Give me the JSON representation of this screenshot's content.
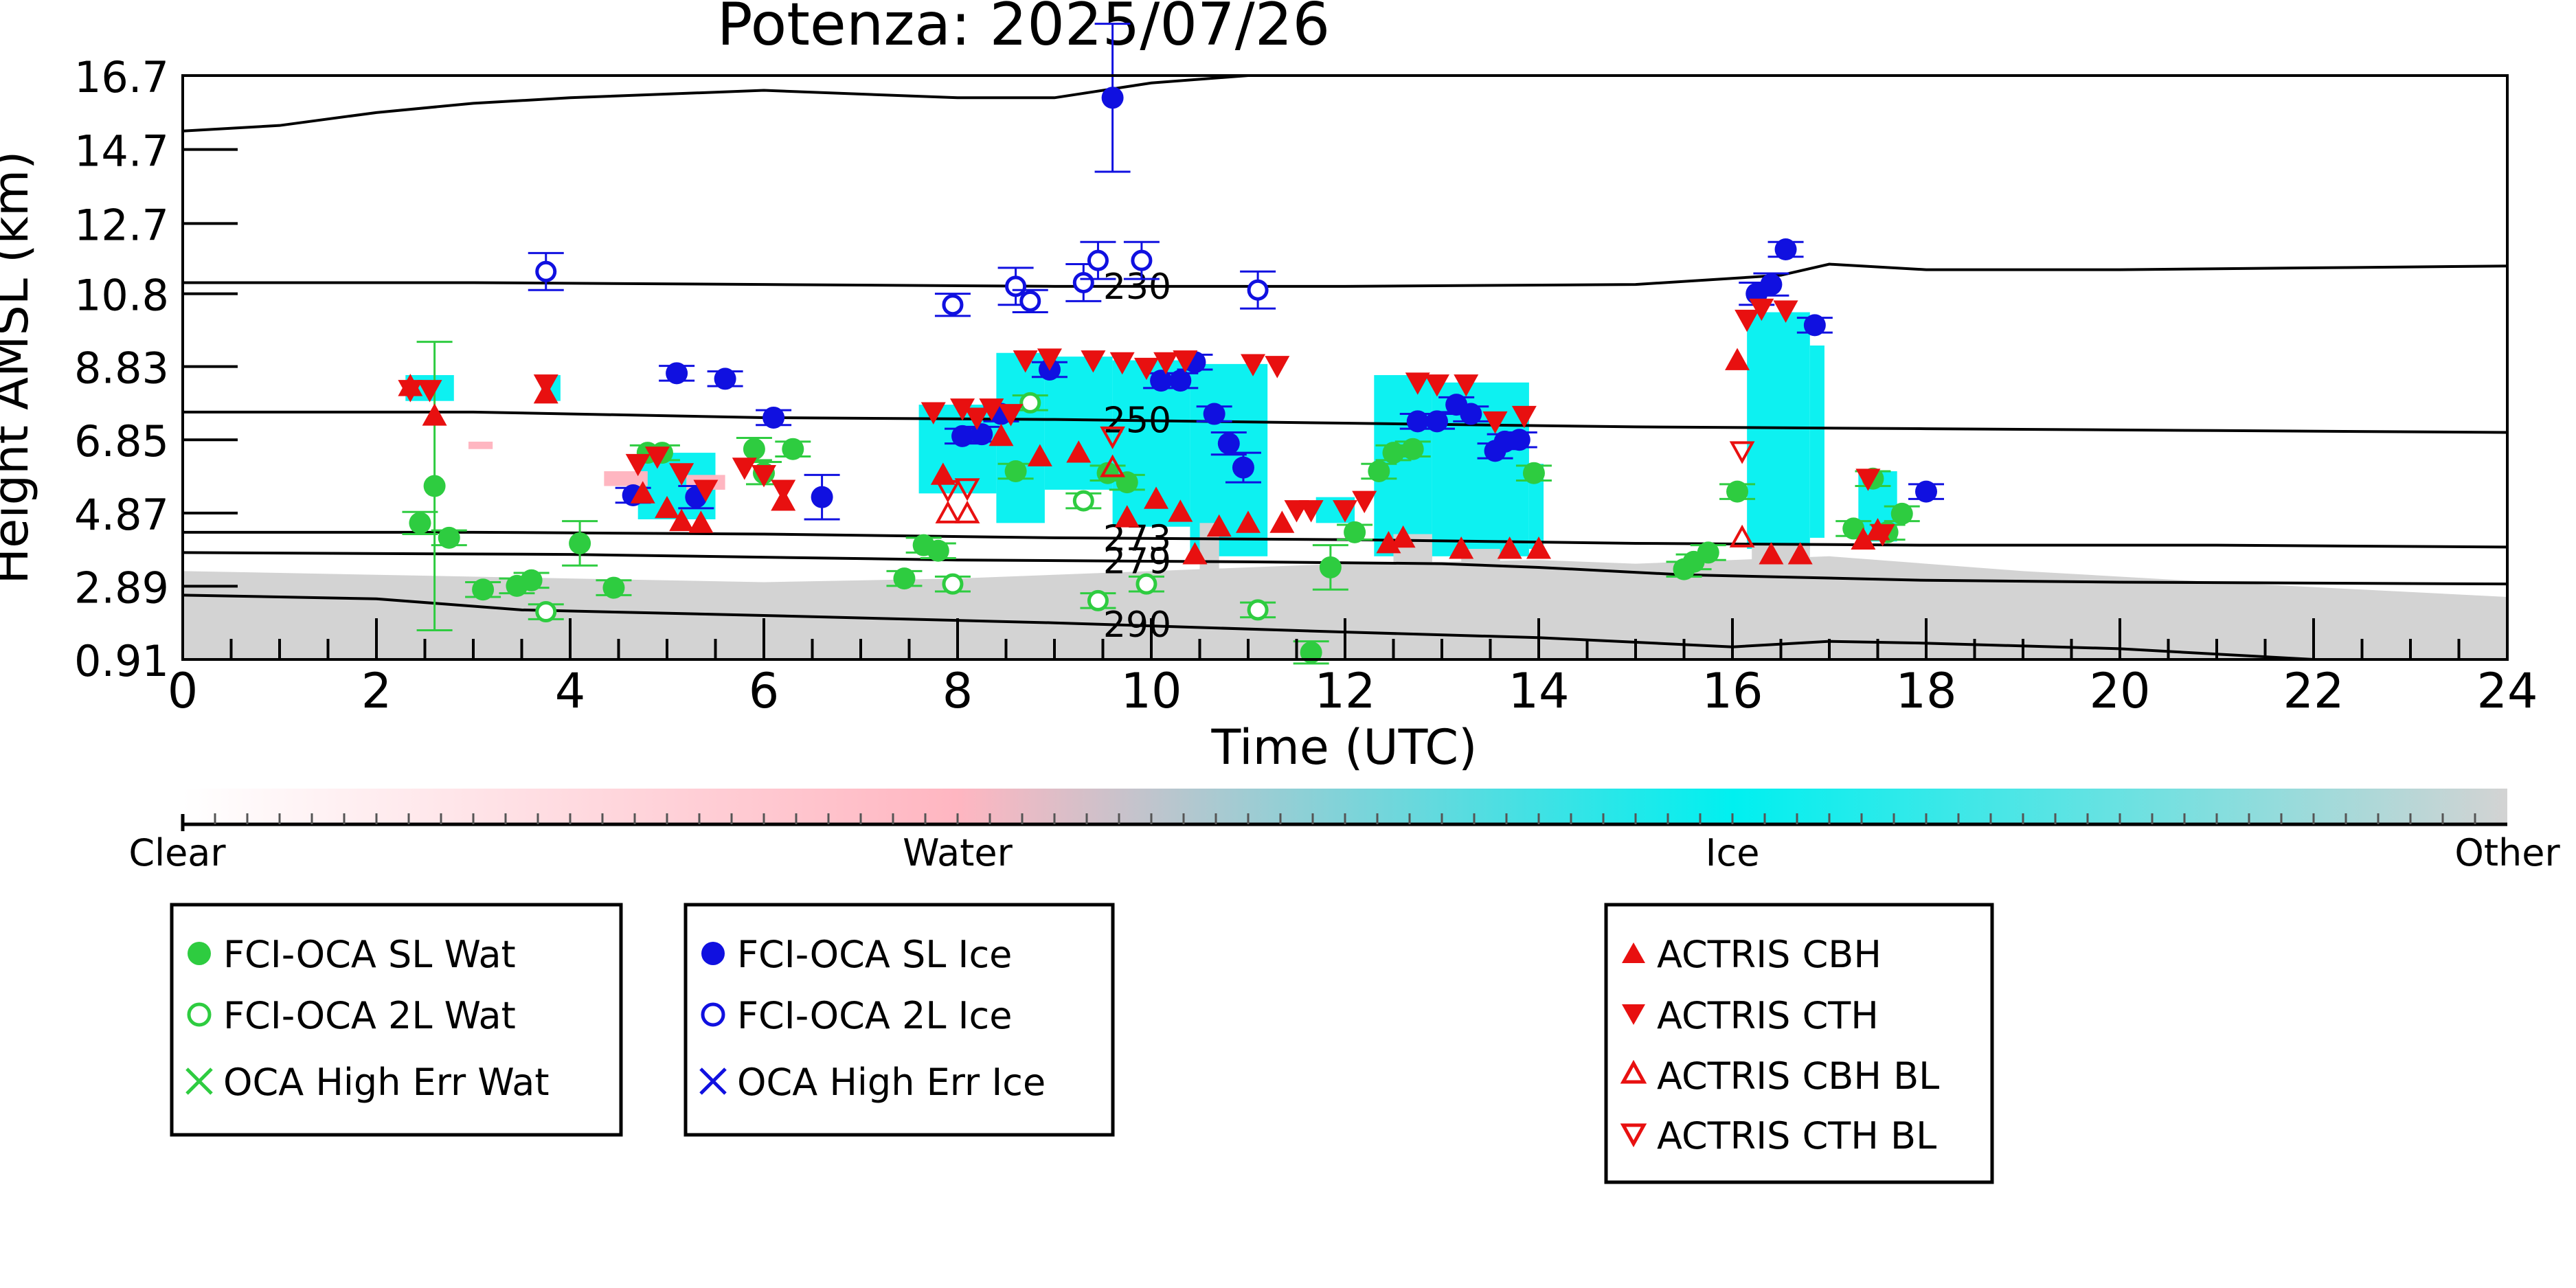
{
  "chart_data": {
    "type": "scatter",
    "title": "Potenza: 2025/07/26",
    "xlabel": "Time (UTC)",
    "ylabel": "Height AMSL (km)",
    "xlim": [
      0,
      24
    ],
    "ylim": [
      0.91,
      16.7
    ],
    "x_ticks": [
      "0",
      "2",
      "4",
      "6",
      "8",
      "10",
      "12",
      "14",
      "16",
      "18",
      "20",
      "22",
      "24"
    ],
    "y_ticks": [
      "0.91",
      "2.89",
      "4.87",
      "6.85",
      "8.83",
      "10.8",
      "12.7",
      "14.7",
      "16.7"
    ],
    "y_tick_values": [
      0.91,
      2.89,
      4.87,
      6.85,
      8.83,
      10.8,
      12.7,
      14.7,
      16.7
    ],
    "colorbar": {
      "labels": [
        "Clear",
        "Water",
        "Ice",
        "Other"
      ],
      "colors": [
        "#ffffff",
        "#ffb6c1",
        "#00f0f0",
        "#d3d3d3"
      ]
    },
    "colors": {
      "water": "#2ecc40",
      "ice": "#1010e0",
      "actris": "#e81010",
      "cloud_ice": "#00f0f0",
      "cloud_other": "#d3d3d3",
      "cloud_water": "#ffb6c1"
    },
    "contours": [
      {
        "label": "230",
        "label_x": 9.5,
        "points": [
          [
            0,
            11.1
          ],
          [
            3,
            11.1
          ],
          [
            6,
            11.05
          ],
          [
            9,
            11.0
          ],
          [
            12,
            11.0
          ],
          [
            15,
            11.05
          ],
          [
            16.5,
            11.3
          ],
          [
            17,
            11.6
          ],
          [
            18,
            11.45
          ],
          [
            20,
            11.45
          ],
          [
            22,
            11.5
          ],
          [
            24,
            11.55
          ]
        ]
      },
      {
        "label": "250",
        "label_x": 9.5,
        "points": [
          [
            0,
            7.6
          ],
          [
            3,
            7.6
          ],
          [
            6,
            7.45
          ],
          [
            9,
            7.4
          ],
          [
            12,
            7.3
          ],
          [
            15,
            7.2
          ],
          [
            18,
            7.15
          ],
          [
            21,
            7.1
          ],
          [
            24,
            7.05
          ]
        ]
      },
      {
        "label": "273",
        "label_x": 9.5,
        "points": [
          [
            0,
            4.35
          ],
          [
            3,
            4.35
          ],
          [
            6,
            4.3
          ],
          [
            9,
            4.2
          ],
          [
            12,
            4.15
          ],
          [
            15,
            4.05
          ],
          [
            18,
            4.0
          ],
          [
            21,
            4.0
          ],
          [
            24,
            3.95
          ]
        ]
      },
      {
        "label": "279",
        "label_x": 9.5,
        "points": [
          [
            0,
            3.8
          ],
          [
            4,
            3.75
          ],
          [
            8,
            3.6
          ],
          [
            11,
            3.55
          ],
          [
            13,
            3.5
          ],
          [
            14,
            3.4
          ],
          [
            15.5,
            3.2
          ],
          [
            18,
            3.05
          ],
          [
            20,
            3.0
          ],
          [
            24,
            2.95
          ]
        ]
      },
      {
        "label": "290",
        "label_x": 9.5,
        "points": [
          [
            0,
            2.65
          ],
          [
            2,
            2.55
          ],
          [
            3.5,
            2.25
          ],
          [
            6,
            2.1
          ],
          [
            9,
            1.9
          ],
          [
            12,
            1.65
          ],
          [
            14,
            1.5
          ],
          [
            16,
            1.25
          ],
          [
            17,
            1.4
          ],
          [
            18,
            1.35
          ],
          [
            20,
            1.2
          ],
          [
            22,
            0.91
          ]
        ]
      },
      {
        "label": "",
        "label_x": null,
        "points": [
          [
            0,
            15.2
          ],
          [
            1,
            15.35
          ],
          [
            2,
            15.7
          ],
          [
            3,
            15.95
          ],
          [
            4,
            16.1
          ],
          [
            6,
            16.3
          ],
          [
            8,
            16.1
          ],
          [
            9,
            16.1
          ],
          [
            10,
            16.5
          ],
          [
            11,
            16.7
          ]
        ]
      }
    ],
    "series": [
      {
        "name": "FCI-OCA SL Wat",
        "marker": "circle-filled",
        "color": "#2ecc40",
        "points": [
          [
            2.45,
            4.6,
            0.3
          ],
          [
            2.6,
            5.6,
            3.9
          ],
          [
            2.75,
            4.2,
            0.2
          ],
          [
            3.1,
            2.8,
            0.2
          ],
          [
            3.45,
            2.9,
            0.2
          ],
          [
            3.6,
            3.05,
            0.2
          ],
          [
            4.1,
            4.05,
            0.6
          ],
          [
            4.45,
            2.85,
            0.2
          ],
          [
            4.8,
            6.5,
            0.2
          ],
          [
            4.95,
            6.5,
            0.2
          ],
          [
            5.9,
            6.6,
            0.3
          ],
          [
            6.0,
            5.95,
            0.3
          ],
          [
            6.3,
            6.6,
            0.2
          ],
          [
            7.45,
            3.1,
            0.2
          ],
          [
            7.65,
            4.0,
            0.2
          ],
          [
            7.8,
            3.85,
            0.2
          ],
          [
            8.6,
            6.0,
            0.2
          ],
          [
            9.55,
            5.95,
            0.2
          ],
          [
            9.75,
            5.7,
            0.2
          ],
          [
            11.65,
            1.1,
            0.3
          ],
          [
            11.85,
            3.4,
            0.6
          ],
          [
            12.1,
            4.35,
            0.2
          ],
          [
            12.35,
            6.0,
            0.2
          ],
          [
            12.5,
            6.5,
            0.2
          ],
          [
            12.7,
            6.6,
            0.2
          ],
          [
            13.95,
            5.95,
            0.2
          ],
          [
            15.5,
            3.35,
            0.2
          ],
          [
            15.6,
            3.55,
            0.2
          ],
          [
            15.75,
            3.8,
            0.2
          ],
          [
            16.05,
            5.45,
            0.2
          ],
          [
            17.25,
            4.45,
            0.2
          ],
          [
            17.45,
            5.8,
            0.2
          ],
          [
            17.6,
            4.35,
            0.2
          ],
          [
            17.75,
            4.85,
            0.2
          ]
        ]
      },
      {
        "name": "FCI-OCA 2L Wat",
        "marker": "circle-open",
        "color": "#2ecc40",
        "points": [
          [
            3.75,
            2.2,
            0.2
          ],
          [
            7.95,
            2.95,
            0.2
          ],
          [
            8.75,
            7.85,
            0.2
          ],
          [
            9.3,
            5.2,
            0.2
          ],
          [
            9.45,
            2.5,
            0.2
          ],
          [
            9.95,
            2.95,
            0.2
          ],
          [
            11.1,
            2.25,
            0.2
          ]
        ]
      },
      {
        "name": "OCA High Err Wat",
        "marker": "x",
        "color": "#2ecc40",
        "points": []
      },
      {
        "name": "FCI-OCA SL Ice",
        "marker": "circle-filled",
        "color": "#1010e0",
        "points": [
          [
            4.65,
            5.35,
            0.2
          ],
          [
            5.1,
            8.65,
            0.2
          ],
          [
            5.3,
            5.3,
            0.3
          ],
          [
            5.6,
            8.5,
            0.2
          ],
          [
            6.1,
            7.45,
            0.2
          ],
          [
            6.6,
            5.3,
            0.6
          ],
          [
            8.05,
            6.95,
            0.2
          ],
          [
            8.25,
            7.0,
            0.2
          ],
          [
            8.45,
            7.55,
            0.2
          ],
          [
            8.95,
            8.75,
            0.2
          ],
          [
            9.6,
            16.1,
            2.0
          ],
          [
            10.1,
            8.45,
            0.2
          ],
          [
            10.3,
            8.45,
            0.2
          ],
          [
            10.45,
            8.95,
            0.2
          ],
          [
            10.65,
            7.55,
            0.2
          ],
          [
            10.8,
            6.75,
            0.3
          ],
          [
            10.95,
            6.1,
            0.4
          ],
          [
            12.75,
            7.35,
            0.2
          ],
          [
            12.95,
            7.35,
            0.2
          ],
          [
            13.15,
            7.8,
            0.2
          ],
          [
            13.3,
            7.55,
            0.2
          ],
          [
            13.55,
            6.55,
            0.2
          ],
          [
            13.65,
            6.8,
            0.2
          ],
          [
            13.8,
            6.85,
            0.2
          ],
          [
            16.25,
            10.8,
            0.3
          ],
          [
            16.4,
            11.05,
            0.3
          ],
          [
            16.55,
            12.0,
            0.2
          ],
          [
            16.85,
            9.95,
            0.2
          ],
          [
            18.0,
            5.45,
            0.2
          ]
        ]
      },
      {
        "name": "FCI-OCA 2L Ice",
        "marker": "circle-open",
        "color": "#1010e0",
        "points": [
          [
            3.75,
            11.4,
            0.5
          ],
          [
            7.95,
            10.5,
            0.3
          ],
          [
            8.6,
            11.0,
            0.5
          ],
          [
            8.75,
            10.6,
            0.3
          ],
          [
            9.3,
            11.1,
            0.5
          ],
          [
            9.45,
            11.7,
            0.5
          ],
          [
            9.9,
            11.7,
            0.5
          ],
          [
            11.1,
            10.9,
            0.5
          ]
        ]
      },
      {
        "name": "OCA High Err Ice",
        "marker": "x",
        "color": "#1010e0",
        "points": []
      },
      {
        "name": "ACTRIS CBH",
        "marker": "triangle-up-filled",
        "color": "#e81010",
        "points": [
          [
            2.35,
            8.3
          ],
          [
            2.6,
            7.5
          ],
          [
            3.75,
            8.1
          ],
          [
            4.75,
            5.4
          ],
          [
            5.0,
            5.0
          ],
          [
            5.15,
            4.65
          ],
          [
            5.35,
            4.6
          ],
          [
            6.2,
            5.2
          ],
          [
            7.85,
            5.9
          ],
          [
            8.45,
            6.95
          ],
          [
            8.85,
            6.4
          ],
          [
            9.25,
            6.5
          ],
          [
            9.75,
            4.75
          ],
          [
            10.05,
            5.25
          ],
          [
            10.3,
            4.9
          ],
          [
            10.45,
            3.75
          ],
          [
            10.7,
            4.5
          ],
          [
            11.0,
            4.6
          ],
          [
            11.35,
            4.6
          ],
          [
            12.45,
            4.05
          ],
          [
            12.6,
            4.2
          ],
          [
            13.2,
            3.9
          ],
          [
            13.7,
            3.9
          ],
          [
            14.0,
            3.9
          ],
          [
            16.05,
            9.0
          ],
          [
            16.4,
            3.75
          ],
          [
            16.7,
            3.75
          ],
          [
            17.35,
            4.15
          ],
          [
            17.5,
            4.4
          ]
        ]
      },
      {
        "name": "ACTRIS CTH",
        "marker": "triangle-down-filled",
        "color": "#e81010",
        "points": [
          [
            2.35,
            8.2
          ],
          [
            2.55,
            8.2
          ],
          [
            3.75,
            8.35
          ],
          [
            4.7,
            6.2
          ],
          [
            4.9,
            6.4
          ],
          [
            5.15,
            5.95
          ],
          [
            5.4,
            5.5
          ],
          [
            5.8,
            6.1
          ],
          [
            6.0,
            5.9
          ],
          [
            6.2,
            5.5
          ],
          [
            7.75,
            7.6
          ],
          [
            8.05,
            7.7
          ],
          [
            8.2,
            7.45
          ],
          [
            8.35,
            7.7
          ],
          [
            8.55,
            7.55
          ],
          [
            8.7,
            9.0
          ],
          [
            8.95,
            9.05
          ],
          [
            9.4,
            9.0
          ],
          [
            9.7,
            8.95
          ],
          [
            9.95,
            8.8
          ],
          [
            10.15,
            8.95
          ],
          [
            10.35,
            9.0
          ],
          [
            11.05,
            8.9
          ],
          [
            11.3,
            8.85
          ],
          [
            11.5,
            4.95
          ],
          [
            11.65,
            4.95
          ],
          [
            12.0,
            4.95
          ],
          [
            12.2,
            5.2
          ],
          [
            12.75,
            8.4
          ],
          [
            12.95,
            8.35
          ],
          [
            13.25,
            8.35
          ],
          [
            13.55,
            7.35
          ],
          [
            13.85,
            7.5
          ],
          [
            16.15,
            10.1
          ],
          [
            16.3,
            10.4
          ],
          [
            16.55,
            10.35
          ],
          [
            17.4,
            5.8
          ],
          [
            17.55,
            4.3
          ]
        ]
      },
      {
        "name": "ACTRIS CBH BL",
        "marker": "triangle-up-open",
        "color": "#e81010",
        "points": [
          [
            7.9,
            4.85
          ],
          [
            8.1,
            4.85
          ],
          [
            9.6,
            6.1
          ],
          [
            16.1,
            4.2
          ]
        ]
      },
      {
        "name": "ACTRIS CTH BL",
        "marker": "triangle-down-open",
        "color": "#e81010",
        "points": [
          [
            7.9,
            5.5
          ],
          [
            8.1,
            5.55
          ],
          [
            9.6,
            6.95
          ],
          [
            16.1,
            6.55
          ]
        ]
      }
    ]
  },
  "legend_groups": [
    [
      "FCI-OCA SL Wat",
      "FCI-OCA 2L Wat",
      "OCA High Err Wat"
    ],
    [
      "FCI-OCA SL Ice",
      "FCI-OCA 2L Ice",
      "OCA High Err Ice"
    ],
    [
      "ACTRIS CBH",
      "ACTRIS CTH",
      "ACTRIS CBH BL",
      "ACTRIS CTH BL"
    ]
  ]
}
